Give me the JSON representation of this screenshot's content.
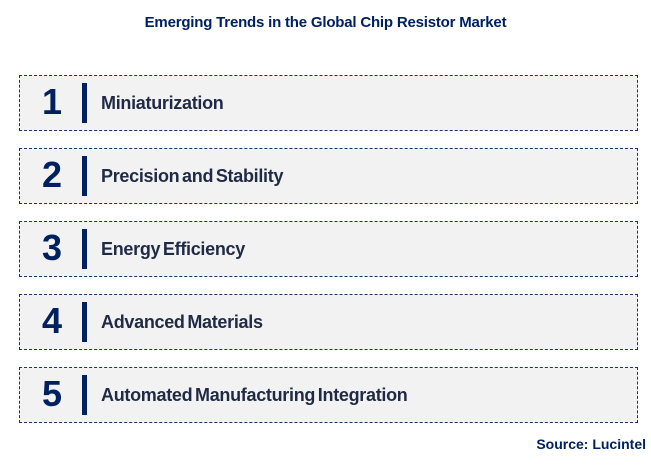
{
  "title": "Emerging Trends in the Global Chip Resistor Market",
  "source": "Source: Lucintel",
  "colors": {
    "navy": "#002060",
    "label_text": "#1F2A44",
    "row_background": "#F2F2F2",
    "dashed_border": "#17375E",
    "page_background": "#FFFFFF"
  },
  "trends": [
    {
      "number": "1",
      "label": "Miniaturization"
    },
    {
      "number": "2",
      "label": "Precision and Stability"
    },
    {
      "number": "3",
      "label": "Energy Efficiency"
    },
    {
      "number": "4",
      "label": "Advanced Materials"
    },
    {
      "number": "5",
      "label": "Automated Manufacturing Integration"
    }
  ]
}
